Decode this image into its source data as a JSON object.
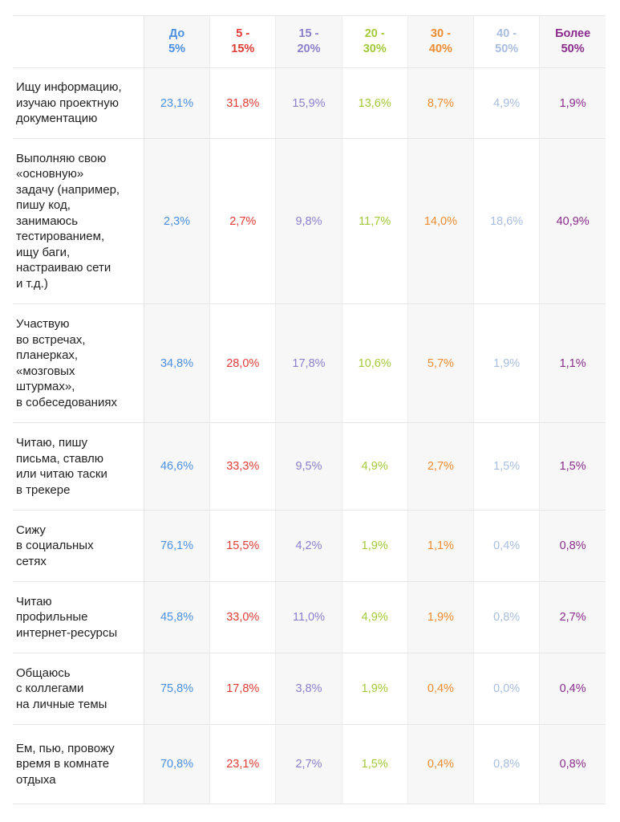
{
  "chart_data": {
    "type": "table",
    "columns": [
      {
        "label": "До\n5%",
        "color": "#4a90e2"
      },
      {
        "label": "5 -\n15%",
        "color": "#e03b34"
      },
      {
        "label": "15 -\n20%",
        "color": "#8b7fcc"
      },
      {
        "label": "20 -\n30%",
        "color": "#a3c93a"
      },
      {
        "label": "30 -\n40%",
        "color": "#ee8c32"
      },
      {
        "label": "40 -\n50%",
        "color": "#a8bde0"
      },
      {
        "label": "Более\n50%",
        "color": "#8a2c8c"
      }
    ],
    "rows": [
      {
        "label": "Ищу информацию,\nизучаю проектную\nдокументацию",
        "values": [
          "23,1%",
          "31,8%",
          "15,9%",
          "13,6%",
          "8,7%",
          "4,9%",
          "1,9%"
        ]
      },
      {
        "label": "Выполняю свою\n«основную»\nзадачу (например,\nпишу код,\nзанимаюсь\nтестированием,\nищу баги,\nнастраиваю сети\nи т.д.)",
        "values": [
          "2,3%",
          "2,7%",
          "9,8%",
          "11,7%",
          "14,0%",
          "18,6%",
          "40,9%"
        ]
      },
      {
        "label": "Участвую\nво встречах,\nпланерках,\n«мозговых\nштурмах»,\nв собеседованиях",
        "values": [
          "34,8%",
          "28,0%",
          "17,8%",
          "10,6%",
          "5,7%",
          "1,9%",
          "1,1%"
        ]
      },
      {
        "label": "Читаю, пишу\nписьма, ставлю\nили читаю таски\nв трекере",
        "values": [
          "46,6%",
          "33,3%",
          "9,5%",
          "4,9%",
          "2,7%",
          "1,5%",
          "1,5%"
        ]
      },
      {
        "label": "Сижу\nв социальных\nсетях",
        "values": [
          "76,1%",
          "15,5%",
          "4,2%",
          "1,9%",
          "1,1%",
          "0,4%",
          "0,8%"
        ]
      },
      {
        "label": "Читаю\nпрофильные\nинтернет-ресурсы",
        "values": [
          "45,8%",
          "33,0%",
          "11,0%",
          "4,9%",
          "1,9%",
          "0,8%",
          "2,7%"
        ]
      },
      {
        "label": "Общаюсь\nс коллегами\nна личные темы",
        "values": [
          "75,8%",
          "17,8%",
          "3,8%",
          "1,9%",
          "0,4%",
          "0,0%",
          "0,4%"
        ]
      },
      {
        "label": "Ем, пью, провожу\nвремя в комнате\nотдыха",
        "values": [
          "70,8%",
          "23,1%",
          "2,7%",
          "1,5%",
          "0,4%",
          "0,8%",
          "0,8%"
        ]
      }
    ]
  }
}
